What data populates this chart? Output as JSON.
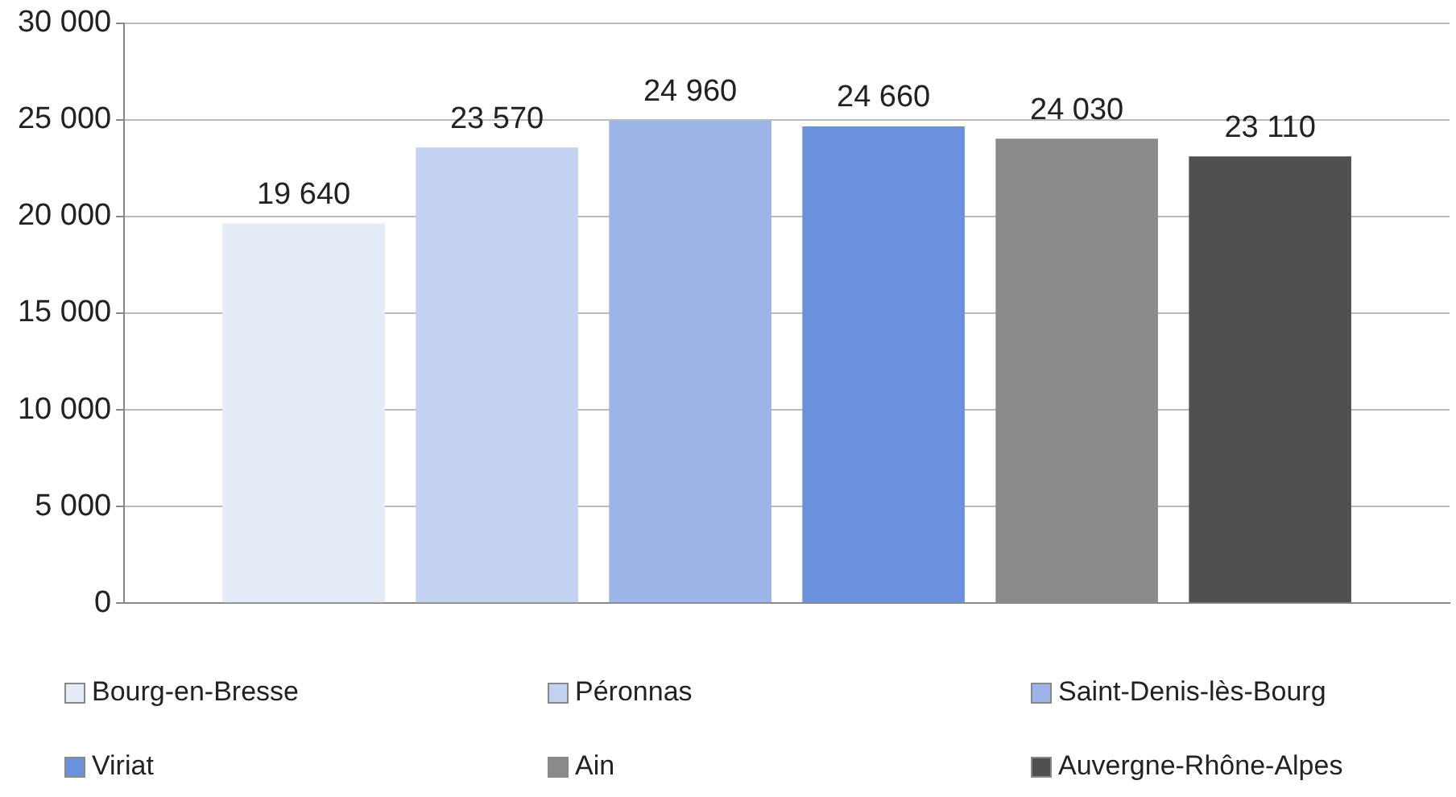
{
  "chart_data": {
    "type": "bar",
    "categories": [
      null
    ],
    "series": [
      {
        "name": "Bourg-en-Bresse",
        "color": "#e6ebf8",
        "values": [
          19640
        ],
        "value_labels": [
          "19 640"
        ]
      },
      {
        "name": "Péronnas",
        "color": "#c3d2f0",
        "values": [
          23570
        ],
        "value_labels": [
          "23 570"
        ]
      },
      {
        "name": "Saint-Denis-lès-Bourg",
        "color": "#9db4e8",
        "values": [
          24960
        ],
        "value_labels": [
          "24 960"
        ]
      },
      {
        "name": "Viriat",
        "color": "#6b91dc",
        "values": [
          24660
        ],
        "value_labels": [
          "24 660"
        ]
      },
      {
        "name": "Ain",
        "color": "#8a8a8a",
        "values": [
          24030
        ],
        "value_labels": [
          "24 030"
        ]
      },
      {
        "name": "Auvergne-Rhône-Alpes",
        "color": "#505050",
        "values": [
          23110
        ],
        "value_labels": [
          "23 110"
        ]
      }
    ],
    "ylim": [
      0,
      30000
    ],
    "yticks": [
      {
        "value": 0,
        "label": "0"
      },
      {
        "value": 5000,
        "label": "5 000"
      },
      {
        "value": 10000,
        "label": "10 000"
      },
      {
        "value": 15000,
        "label": "15 000"
      },
      {
        "value": 20000,
        "label": "20 000"
      },
      {
        "value": 25000,
        "label": "25 000"
      },
      {
        "value": 30000,
        "label": "30 000"
      }
    ],
    "grid": "y",
    "legend": "bottom"
  }
}
